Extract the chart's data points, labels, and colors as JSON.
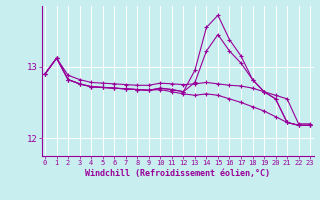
{
  "xlabel": "Windchill (Refroidissement éolien,°C)",
  "bg_color": "#c8eef0",
  "line_color": "#990099",
  "grid_color": "#ffffff",
  "ylim": [
    11.75,
    13.85
  ],
  "xlim": [
    -0.3,
    23.3
  ],
  "yticks": [
    12,
    13
  ],
  "xticks": [
    0,
    1,
    2,
    3,
    4,
    5,
    6,
    7,
    8,
    9,
    10,
    11,
    12,
    13,
    14,
    15,
    16,
    17,
    18,
    19,
    20,
    21,
    22,
    23
  ],
  "series": [
    [
      12.9,
      13.12,
      12.88,
      12.82,
      12.78,
      12.77,
      12.76,
      12.75,
      12.74,
      12.74,
      12.77,
      12.76,
      12.75,
      12.76,
      12.78,
      12.76,
      12.74,
      12.73,
      12.7,
      12.65,
      12.6,
      12.55,
      12.2,
      12.2
    ],
    [
      12.9,
      13.12,
      12.82,
      12.76,
      12.72,
      12.71,
      12.7,
      12.69,
      12.68,
      12.67,
      12.68,
      12.65,
      12.62,
      12.6,
      12.62,
      12.6,
      12.55,
      12.5,
      12.44,
      12.38,
      12.3,
      12.22,
      12.18,
      12.18
    ],
    [
      12.9,
      13.12,
      12.82,
      12.76,
      12.72,
      12.71,
      12.7,
      12.69,
      12.68,
      12.67,
      12.7,
      12.68,
      12.65,
      12.78,
      13.22,
      13.45,
      13.22,
      13.05,
      12.82,
      12.65,
      12.55,
      12.22,
      12.18,
      12.18
    ],
    [
      12.9,
      13.12,
      12.82,
      12.76,
      12.72,
      12.71,
      12.7,
      12.69,
      12.68,
      12.67,
      12.7,
      12.68,
      12.65,
      12.95,
      13.55,
      13.72,
      13.38,
      13.15,
      12.82,
      12.65,
      12.55,
      12.22,
      12.18,
      12.18
    ]
  ]
}
